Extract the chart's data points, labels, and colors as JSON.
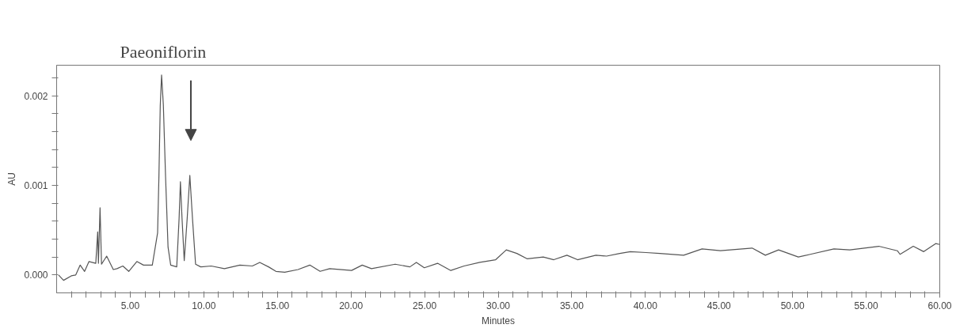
{
  "chart_data": {
    "type": "line",
    "title": "Paeoniflorin",
    "xlabel": "Minutes",
    "ylabel": "AU",
    "xlim": [
      0,
      60
    ],
    "ylim": [
      -0.0002,
      0.00234
    ],
    "grid": false,
    "marker": "none",
    "line_style": "solid",
    "xticks": [
      {
        "value": 1,
        "label": null
      },
      {
        "value": 2,
        "label": null
      },
      {
        "value": 3,
        "label": null
      },
      {
        "value": 4,
        "label": null
      },
      {
        "value": 5,
        "label": "5.00"
      },
      {
        "value": 6,
        "label": null
      },
      {
        "value": 7,
        "label": null
      },
      {
        "value": 8,
        "label": null
      },
      {
        "value": 9,
        "label": null
      },
      {
        "value": 10,
        "label": "10.00"
      },
      {
        "value": 11,
        "label": null
      },
      {
        "value": 12,
        "label": null
      },
      {
        "value": 13,
        "label": null
      },
      {
        "value": 14,
        "label": null
      },
      {
        "value": 15,
        "label": "15.00"
      },
      {
        "value": 16,
        "label": null
      },
      {
        "value": 17,
        "label": null
      },
      {
        "value": 18,
        "label": null
      },
      {
        "value": 19,
        "label": null
      },
      {
        "value": 20,
        "label": "20.00"
      },
      {
        "value": 21,
        "label": null
      },
      {
        "value": 22,
        "label": null
      },
      {
        "value": 23,
        "label": null
      },
      {
        "value": 24,
        "label": null
      },
      {
        "value": 25,
        "label": "25.00"
      },
      {
        "value": 26,
        "label": null
      },
      {
        "value": 27,
        "label": null
      },
      {
        "value": 28,
        "label": null
      },
      {
        "value": 29,
        "label": null
      },
      {
        "value": 30,
        "label": "30.00"
      },
      {
        "value": 31,
        "label": null
      },
      {
        "value": 32,
        "label": null
      },
      {
        "value": 33,
        "label": null
      },
      {
        "value": 34,
        "label": null
      },
      {
        "value": 35,
        "label": "35.00"
      },
      {
        "value": 36,
        "label": null
      },
      {
        "value": 37,
        "label": null
      },
      {
        "value": 38,
        "label": null
      },
      {
        "value": 39,
        "label": null
      },
      {
        "value": 40,
        "label": "40.00"
      },
      {
        "value": 41,
        "label": null
      },
      {
        "value": 42,
        "label": null
      },
      {
        "value": 43,
        "label": null
      },
      {
        "value": 44,
        "label": null
      },
      {
        "value": 45,
        "label": "45.00"
      },
      {
        "value": 46,
        "label": null
      },
      {
        "value": 47,
        "label": null
      },
      {
        "value": 48,
        "label": null
      },
      {
        "value": 49,
        "label": null
      },
      {
        "value": 50,
        "label": "50.00"
      },
      {
        "value": 51,
        "label": null
      },
      {
        "value": 52,
        "label": null
      },
      {
        "value": 53,
        "label": null
      },
      {
        "value": 54,
        "label": null
      },
      {
        "value": 55,
        "label": "55.00"
      },
      {
        "value": 56,
        "label": null
      },
      {
        "value": 57,
        "label": null
      },
      {
        "value": 58,
        "label": null
      },
      {
        "value": 59,
        "label": null
      },
      {
        "value": 60,
        "label": "60.00"
      }
    ],
    "yticks": [
      {
        "value": 0,
        "label": "0.000"
      },
      {
        "value": 0.0002,
        "label": null
      },
      {
        "value": 0.0004,
        "label": null
      },
      {
        "value": 0.0006,
        "label": null
      },
      {
        "value": 0.0008,
        "label": null
      },
      {
        "value": 0.001,
        "label": "0.001"
      },
      {
        "value": 0.0012,
        "label": null
      },
      {
        "value": 0.0014,
        "label": null
      },
      {
        "value": 0.0016,
        "label": null
      },
      {
        "value": 0.0018,
        "label": null
      },
      {
        "value": 0.002,
        "label": "0.002"
      },
      {
        "value": 0.0022,
        "label": null
      }
    ],
    "series": [
      {
        "color": "#555555",
        "x": [
          0.13,
          0.47,
          1.0,
          1.3,
          1.6,
          1.9,
          2.2,
          2.66,
          2.79,
          2.84,
          2.95,
          3.05,
          3.4,
          3.85,
          4.1,
          4.5,
          4.9,
          5.45,
          5.9,
          6.5,
          6.86,
          6.95,
          7.04,
          7.13,
          7.25,
          7.4,
          7.57,
          7.75,
          8.16,
          8.32,
          8.41,
          8.52,
          8.67,
          8.87,
          9.05,
          9.23,
          9.44,
          9.79,
          10.5,
          11.4,
          12.45,
          13.3,
          13.8,
          14.4,
          14.9,
          15.5,
          16.4,
          17.2,
          17.9,
          18.55,
          20.04,
          20.76,
          21.39,
          23.0,
          24.0,
          24.44,
          24.98,
          25.88,
          26.78,
          27.68,
          28.75,
          29.83,
          30.55,
          31.27,
          31.98,
          33.06,
          33.78,
          34.67,
          35.39,
          36.64,
          37.36,
          38.26,
          38.98,
          40.05,
          40.98,
          42.6,
          43.85,
          45.1,
          47.25,
          48.15,
          49.05,
          50.39,
          51.2,
          52.81,
          53.89,
          55.86,
          57.12,
          57.3,
          58.2,
          58.91,
          59.72,
          60.0
        ],
        "values": [
          0.0,
          -6e-05,
          -1e-05,
          0.0,
          0.00011,
          4e-05,
          0.00015,
          0.00013,
          0.00048,
          0.00013,
          0.00075,
          0.00012,
          0.00021,
          6e-05,
          7e-05,
          0.0001,
          4e-05,
          0.00015,
          0.00011,
          0.00011,
          0.00047,
          0.0011,
          0.00189,
          0.00223,
          0.0019,
          0.0011,
          0.00031,
          0.00011,
          9e-05,
          0.00063,
          0.00104,
          0.00063,
          0.00016,
          0.00063,
          0.00111,
          0.00063,
          0.00012,
          9e-05,
          0.0001,
          7e-05,
          0.00011,
          0.0001,
          0.00014,
          9e-05,
          4e-05,
          3e-05,
          6e-05,
          0.00011,
          4e-05,
          7e-05,
          5e-05,
          0.00011,
          7e-05,
          0.00012,
          9e-05,
          0.00014,
          8e-05,
          0.00013,
          5e-05,
          0.0001,
          0.00014,
          0.00017,
          0.00028,
          0.00024,
          0.00018,
          0.0002,
          0.00017,
          0.00022,
          0.00017,
          0.00022,
          0.00021,
          0.00024,
          0.00026,
          0.00025,
          0.00024,
          0.00022,
          0.00029,
          0.00027,
          0.0003,
          0.00022,
          0.00028,
          0.0002,
          0.00023,
          0.00029,
          0.00028,
          0.00032,
          0.00027,
          0.00023,
          0.00032,
          0.00026,
          0.00035,
          0.00034
        ]
      }
    ]
  }
}
